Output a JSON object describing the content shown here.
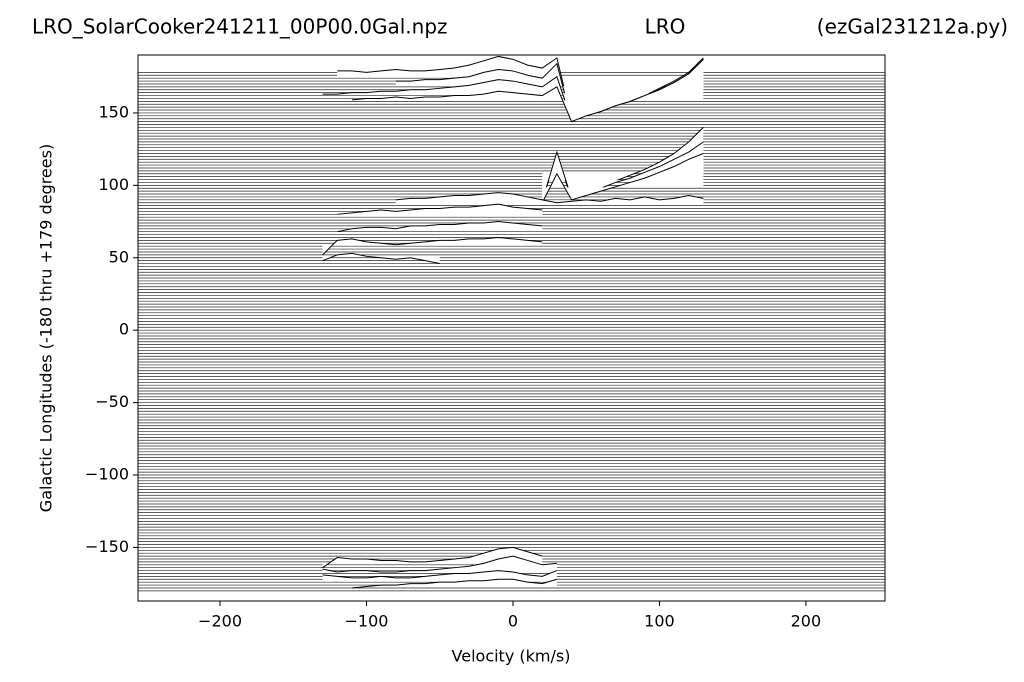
{
  "chart_data": {
    "type": "ridgeline",
    "title": "LRO_SolarCooker241211_00P00.0Gal.npz",
    "subtitle": "LRO",
    "annotation": "(ezGal231212a.py)",
    "x_label": "Velocity (km/s)",
    "y_label": "Galactic Longitudes    (-180 thru +179 degrees)",
    "xlim": [
      -256,
      254
    ],
    "ylim": [
      -187,
      190
    ],
    "xticks": [
      {
        "value": -200,
        "label": "−200"
      },
      {
        "value": -100,
        "label": "−100"
      },
      0,
      100,
      200
    ],
    "yticks": [
      {
        "value": -150,
        "label": "−150"
      },
      {
        "value": -100,
        "label": "−100"
      },
      {
        "value": -50,
        "label": "−50"
      },
      0,
      50,
      100,
      150
    ],
    "color": "#000000",
    "baselines": [
      -180,
      -178,
      -176,
      -174,
      -172,
      -170,
      -168,
      -166,
      -164,
      -162,
      -160,
      -158,
      -156,
      -154,
      -152,
      -150,
      -148,
      -146,
      -144,
      -142,
      -140,
      -138,
      -136,
      -134,
      -132,
      -130,
      -128,
      -126,
      -124,
      -122,
      -120,
      -118,
      -116,
      -114,
      -112,
      -110,
      -108,
      -106,
      -104,
      -102,
      -100,
      -98,
      -96,
      -94,
      -92,
      -90,
      -88,
      -86,
      -84,
      -82,
      -80,
      -78,
      -76,
      -74,
      -72,
      -70,
      -68,
      -66,
      -64,
      -62,
      -60,
      -58,
      -56,
      -54,
      -52,
      -50,
      -48,
      -46,
      -44,
      -42,
      -40,
      -38,
      -36,
      -34,
      -32,
      -30,
      -28,
      -26,
      -24,
      -22,
      -20,
      -18,
      -16,
      -14,
      -12,
      -10,
      -8,
      -6,
      -4,
      -2,
      0,
      2,
      4,
      6,
      8,
      10,
      12,
      14,
      16,
      18,
      20,
      22,
      24,
      26,
      28,
      30,
      32,
      34,
      36,
      38,
      40,
      42,
      44,
      46,
      48,
      50,
      52,
      54,
      56,
      58,
      60,
      62,
      64,
      66,
      68,
      70,
      72,
      74,
      76,
      78,
      80,
      82,
      84,
      86,
      88,
      90,
      92,
      94,
      96,
      98,
      100,
      102,
      104,
      106,
      108,
      110,
      112,
      114,
      116,
      118,
      120,
      122,
      124,
      126,
      128,
      130,
      132,
      134,
      136,
      138,
      140,
      142,
      144,
      146,
      148,
      150,
      152,
      154,
      156,
      158,
      160,
      162,
      164,
      166,
      168,
      170,
      172,
      174,
      176,
      178
    ],
    "x": [
      -130,
      -120,
      -110,
      -100,
      -90,
      -80,
      -70,
      -60,
      -50,
      -40,
      -30,
      -20,
      -10,
      0,
      10,
      20,
      30,
      40,
      50,
      60,
      70,
      80,
      90,
      100,
      110,
      120,
      130
    ],
    "profiles": [
      {
        "longitude": 176,
        "values": [
          null,
          3,
          3,
          2,
          3,
          4,
          3,
          3,
          4,
          5,
          7,
          10,
          13,
          11,
          7,
          5,
          12,
          -30,
          -27,
          -24,
          -20,
          -17,
          -13,
          -9,
          -5,
          2,
          12
        ]
      },
      {
        "longitude": 170,
        "values": [
          null,
          null,
          null,
          null,
          null,
          2,
          2,
          3,
          3,
          4,
          5,
          8,
          10,
          9,
          6,
          4,
          14,
          -25,
          -22,
          -19,
          -15,
          -12,
          -8,
          -3,
          2,
          8,
          16
        ]
      },
      {
        "longitude": 165,
        "values": [
          -2,
          -2,
          -1,
          -1,
          0,
          0,
          1,
          1,
          2,
          3,
          4,
          6,
          8,
          7,
          5,
          3,
          10,
          -20,
          -16,
          -14,
          -10,
          -7,
          -3,
          1,
          6,
          12,
          22
        ]
      },
      {
        "longitude": 160,
        "values": [
          null,
          null,
          -1,
          0,
          0,
          1,
          0,
          1,
          1,
          2,
          2,
          3,
          5,
          4,
          3,
          2,
          8,
          -16,
          -12,
          -9,
          -5,
          -2,
          2,
          6,
          11,
          17,
          27
        ]
      },
      {
        "longitude": 110,
        "values": [
          null,
          null,
          null,
          null,
          null,
          null,
          null,
          null,
          null,
          null,
          null,
          null,
          null,
          null,
          null,
          -20,
          10,
          -19,
          -15,
          -11,
          -7,
          -3,
          1,
          6,
          12,
          20,
          30
        ]
      },
      {
        "longitude": 105,
        "values": [
          null,
          null,
          null,
          null,
          null,
          null,
          null,
          null,
          null,
          null,
          null,
          null,
          null,
          null,
          null,
          -16,
          18,
          -14,
          -10,
          -7,
          -3,
          0,
          4,
          8,
          13,
          18,
          25
        ]
      },
      {
        "longitude": 100,
        "values": [
          null,
          null,
          null,
          null,
          null,
          null,
          null,
          null,
          null,
          null,
          null,
          null,
          null,
          null,
          null,
          -12,
          8,
          -10,
          -7,
          -4,
          -1,
          2,
          5,
          9,
          13,
          18,
          22
        ]
      },
      {
        "longitude": 88,
        "values": [
          null,
          null,
          null,
          null,
          null,
          2,
          3,
          3,
          4,
          5,
          5,
          6,
          7,
          6,
          4,
          2,
          0,
          1,
          2,
          1,
          3,
          2,
          4,
          2,
          3,
          5,
          3
        ]
      },
      {
        "longitude": 80,
        "values": [
          null,
          0,
          1,
          2,
          3,
          2,
          3,
          4,
          4,
          5,
          5,
          6,
          7,
          5,
          4,
          3,
          null,
          null,
          null,
          null,
          null,
          null,
          null,
          null,
          null,
          null,
          null
        ]
      },
      {
        "longitude": 70,
        "values": [
          null,
          -2,
          0,
          1,
          1,
          0,
          2,
          2,
          3,
          3,
          4,
          4,
          5,
          4,
          3,
          2,
          null,
          null,
          null,
          null,
          null,
          null,
          null,
          null,
          null,
          null,
          null
        ]
      },
      {
        "longitude": 60,
        "values": [
          -8,
          2,
          3,
          1,
          0,
          -1,
          0,
          1,
          2,
          2,
          3,
          3,
          4,
          3,
          2,
          1,
          null,
          null,
          null,
          null,
          null,
          null,
          null,
          null,
          null,
          null,
          null
        ]
      },
      {
        "longitude": 52,
        "values": [
          -4,
          0,
          1,
          -1,
          -2,
          -3,
          -2,
          -4,
          -6,
          null,
          null,
          null,
          null,
          null,
          null,
          null,
          null,
          null,
          null,
          null,
          null,
          null,
          null,
          null,
          null,
          null,
          null
        ]
      },
      {
        "longitude": -160,
        "values": [
          -4,
          3,
          2,
          2,
          1,
          1,
          0,
          0,
          1,
          2,
          3,
          6,
          9,
          10,
          7,
          4,
          null,
          null,
          null,
          null,
          null,
          null,
          null,
          null,
          null,
          null,
          null
        ]
      },
      {
        "longitude": -165,
        "values": [
          0,
          -2,
          -1,
          -1,
          -2,
          -2,
          -1,
          -1,
          0,
          1,
          2,
          4,
          7,
          9,
          6,
          3,
          4,
          null,
          null,
          null,
          null,
          null,
          null,
          null,
          null,
          null,
          null
        ]
      },
      {
        "longitude": -172,
        "values": [
          3,
          2,
          1,
          1,
          2,
          1,
          1,
          2,
          3,
          4,
          4,
          5,
          6,
          5,
          3,
          2,
          6,
          null,
          null,
          null,
          null,
          null,
          null,
          null,
          null,
          null,
          null
        ]
      },
      {
        "longitude": -176,
        "values": [
          null,
          null,
          -2,
          -1,
          0,
          0,
          1,
          1,
          2,
          2,
          3,
          3,
          4,
          4,
          2,
          1,
          4,
          null,
          null,
          null,
          null,
          null,
          null,
          null,
          null,
          null,
          null
        ]
      }
    ]
  }
}
